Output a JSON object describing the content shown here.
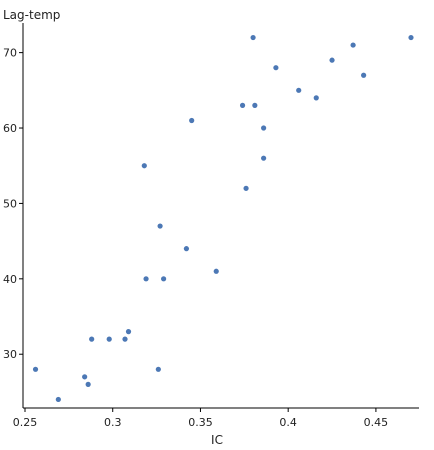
{
  "chart_data": {
    "type": "scatter",
    "title": "",
    "xlabel": "IC",
    "ylabel": "Lag-temp",
    "xlim": [
      0.25,
      0.47
    ],
    "ylim": [
      23,
      73
    ],
    "xticks": [
      0.25,
      0.3,
      0.35,
      0.4,
      0.45
    ],
    "xtick_labels": [
      "0.25",
      "0.3",
      "0.35",
      "0.4",
      "0.45"
    ],
    "yticks": [
      30,
      40,
      50,
      60,
      70
    ],
    "ytick_labels": [
      "30",
      "40",
      "50",
      "60",
      "70"
    ],
    "grid": false,
    "marker_color": "#4c78b5",
    "points": [
      {
        "x": 0.256,
        "y": 28
      },
      {
        "x": 0.269,
        "y": 24
      },
      {
        "x": 0.284,
        "y": 27
      },
      {
        "x": 0.286,
        "y": 26
      },
      {
        "x": 0.288,
        "y": 32
      },
      {
        "x": 0.298,
        "y": 32
      },
      {
        "x": 0.307,
        "y": 32
      },
      {
        "x": 0.309,
        "y": 33
      },
      {
        "x": 0.318,
        "y": 55
      },
      {
        "x": 0.319,
        "y": 40
      },
      {
        "x": 0.326,
        "y": 28
      },
      {
        "x": 0.327,
        "y": 47
      },
      {
        "x": 0.329,
        "y": 40
      },
      {
        "x": 0.342,
        "y": 44
      },
      {
        "x": 0.345,
        "y": 61
      },
      {
        "x": 0.359,
        "y": 41
      },
      {
        "x": 0.374,
        "y": 63
      },
      {
        "x": 0.376,
        "y": 52
      },
      {
        "x": 0.38,
        "y": 72
      },
      {
        "x": 0.381,
        "y": 63
      },
      {
        "x": 0.386,
        "y": 60
      },
      {
        "x": 0.386,
        "y": 56
      },
      {
        "x": 0.393,
        "y": 68
      },
      {
        "x": 0.406,
        "y": 65
      },
      {
        "x": 0.416,
        "y": 64
      },
      {
        "x": 0.425,
        "y": 69
      },
      {
        "x": 0.437,
        "y": 71
      },
      {
        "x": 0.443,
        "y": 67
      },
      {
        "x": 0.47,
        "y": 72
      }
    ]
  }
}
